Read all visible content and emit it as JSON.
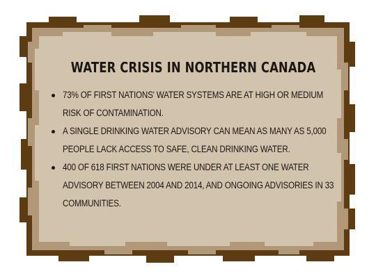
{
  "card": {
    "title": "WATER CRISIS IN NORTHERN CANADA",
    "facts": [
      "73% of First Nations' water systems are at high or medium risk of contamination.",
      "A single drinking water advisory can mean as many as 5,000 people lack access to safe, clean drinking water.",
      "400 of 618 First Nations were under at least one water advisory between 2004 and 2014, and ongoing advisories in 33 communities."
    ]
  },
  "colors": {
    "outer_border": "#5e3c12",
    "middle_border": "#b09878",
    "panel": "#d2c3ad",
    "text": "#1b1712"
  }
}
